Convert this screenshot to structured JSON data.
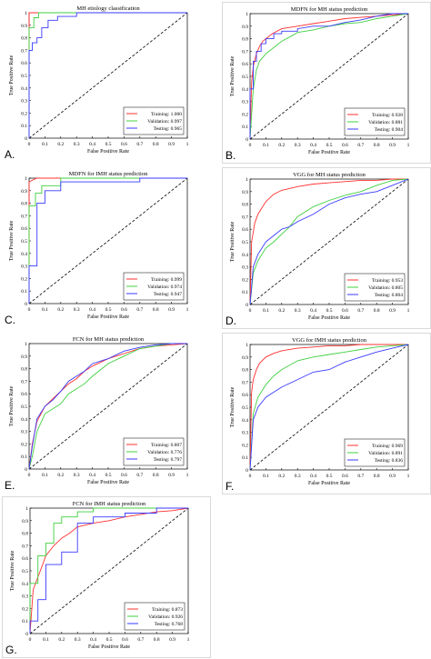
{
  "colors": {
    "training": "#ff3030",
    "validation": "#40d040",
    "testing": "#3a3aff",
    "chance": "#000000"
  },
  "chart_data": [
    {
      "type": "line",
      "panel_label": "A.",
      "title": "MH etiology classification",
      "xlabel": "False Positive Rate",
      "ylabel": "True Positive Rate",
      "xlim": [
        0,
        1
      ],
      "ylim": [
        0,
        1
      ],
      "xticks": [
        "0",
        "0.1",
        "0.2",
        "0.3",
        "0.4",
        "0.5",
        "0.6",
        "0.7",
        "0.8",
        "0.9",
        "1"
      ],
      "yticks": [
        "0",
        "0.1",
        "0.2",
        "0.3",
        "0.4",
        "0.5",
        "0.6",
        "0.7",
        "0.8",
        "0.9",
        "1"
      ],
      "legend": "bottom-right",
      "series": [
        {
          "name": "Training: 1.000",
          "color": "#ff3030",
          "x": [
            0,
            0,
            0.02,
            1
          ],
          "y": [
            0,
            1,
            1,
            1
          ]
        },
        {
          "name": "Validation: 0.997",
          "color": "#40d040",
          "x": [
            0,
            0,
            0.03,
            0.03,
            0.06,
            0.06,
            0.1,
            1
          ],
          "y": [
            0,
            0.88,
            0.88,
            0.96,
            0.96,
            1,
            1,
            1
          ]
        },
        {
          "name": "Testing: 0.965",
          "color": "#3a3aff",
          "x": [
            0,
            0,
            0.02,
            0.02,
            0.05,
            0.05,
            0.08,
            0.08,
            0.12,
            0.12,
            0.18,
            0.18,
            0.3,
            0.3,
            1
          ],
          "y": [
            0,
            0.7,
            0.7,
            0.76,
            0.76,
            0.8,
            0.8,
            0.88,
            0.88,
            0.94,
            0.94,
            0.97,
            0.97,
            1,
            1
          ]
        }
      ]
    },
    {
      "type": "line",
      "panel_label": "B.",
      "title": "MDFN for MH status prediction",
      "xlabel": "False Positive Rate",
      "ylabel": "True Positive Rate",
      "xlim": [
        0,
        1
      ],
      "ylim": [
        0,
        1
      ],
      "xticks": [
        "0",
        "0.1",
        "0.2",
        "0.3",
        "0.4",
        "0.5",
        "0.6",
        "0.7",
        "0.8",
        "0.9",
        "1"
      ],
      "yticks": [
        "0",
        "0.1",
        "0.2",
        "0.3",
        "0.4",
        "0.5",
        "0.6",
        "0.7",
        "0.8",
        "0.9",
        "1"
      ],
      "legend": "bottom-right",
      "series": [
        {
          "name": "Training: 0.928",
          "color": "#ff3030",
          "x": [
            0,
            0.01,
            0.02,
            0.04,
            0.06,
            0.08,
            0.1,
            0.14,
            0.2,
            0.3,
            0.4,
            0.5,
            0.6,
            0.7,
            0.8,
            0.9,
            1
          ],
          "y": [
            0,
            0.45,
            0.58,
            0.68,
            0.74,
            0.78,
            0.8,
            0.84,
            0.88,
            0.9,
            0.92,
            0.94,
            0.96,
            0.97,
            0.98,
            0.99,
            1
          ]
        },
        {
          "name": "Validation: 0.881",
          "color": "#40d040",
          "x": [
            0,
            0.02,
            0.04,
            0.06,
            0.1,
            0.14,
            0.2,
            0.26,
            0.3,
            0.4,
            0.5,
            0.6,
            0.7,
            0.8,
            0.9,
            1
          ],
          "y": [
            0,
            0.4,
            0.55,
            0.62,
            0.68,
            0.72,
            0.78,
            0.82,
            0.85,
            0.87,
            0.9,
            0.92,
            0.93,
            0.96,
            0.98,
            1
          ]
        },
        {
          "name": "Testing: 0.904",
          "color": "#3a3aff",
          "x": [
            0,
            0,
            0.02,
            0.02,
            0.04,
            0.04,
            0.07,
            0.07,
            0.1,
            0.1,
            0.15,
            0.15,
            0.2,
            0.2,
            0.3,
            0.3,
            0.4,
            0.5,
            0.6,
            0.7,
            0.8,
            0.9,
            1
          ],
          "y": [
            0,
            0.4,
            0.4,
            0.62,
            0.62,
            0.7,
            0.7,
            0.76,
            0.76,
            0.8,
            0.8,
            0.84,
            0.84,
            0.86,
            0.86,
            0.88,
            0.9,
            0.9,
            0.93,
            0.95,
            0.98,
            1,
            1
          ]
        }
      ]
    },
    {
      "type": "line",
      "panel_label": "C.",
      "title": "MDFN for IMH status prediction",
      "xlabel": "False Positive Rate",
      "ylabel": "True Positive Rate",
      "xlim": [
        0,
        1
      ],
      "ylim": [
        0,
        1
      ],
      "xticks": [
        "0",
        "0.1",
        "0.2",
        "0.3",
        "0.4",
        "0.5",
        "0.6",
        "0.7",
        "0.8",
        "0.9",
        "1"
      ],
      "yticks": [
        "0",
        "0.1",
        "0.2",
        "0.3",
        "0.4",
        "0.5",
        "0.6",
        "0.7",
        "0.8",
        "0.9",
        "1"
      ],
      "legend": "bottom-right",
      "series": [
        {
          "name": "Training: 0.999",
          "color": "#ff3030",
          "x": [
            0,
            0,
            0.03,
            0.05,
            1
          ],
          "y": [
            0,
            0.97,
            0.99,
            1,
            1
          ]
        },
        {
          "name": "Validation: 0.974",
          "color": "#40d040",
          "x": [
            0,
            0,
            0.04,
            0.04,
            0.08,
            0.08,
            0.2,
            0.2,
            1
          ],
          "y": [
            0,
            0.78,
            0.78,
            0.88,
            0.88,
            0.94,
            0.94,
            1,
            1
          ]
        },
        {
          "name": "Testing: 0.947",
          "color": "#3a3aff",
          "x": [
            0,
            0,
            0.05,
            0.05,
            0.1,
            0.1,
            0.2,
            0.2,
            0.7,
            0.7,
            1
          ],
          "y": [
            0,
            0.3,
            0.3,
            0.8,
            0.8,
            0.9,
            0.9,
            0.97,
            0.97,
            1,
            1
          ]
        }
      ]
    },
    {
      "type": "line",
      "panel_label": "D.",
      "title": "VGG for MH status prediction",
      "xlabel": "False Positive Rate",
      "ylabel": "True Positive Rate",
      "xlim": [
        0,
        1
      ],
      "ylim": [
        0,
        1
      ],
      "xticks": [
        "0",
        "0.1",
        "0.2",
        "0.3",
        "0.4",
        "0.5",
        "0.6",
        "0.7",
        "0.8",
        "0.9",
        "1"
      ],
      "yticks": [
        "0",
        "0.1",
        "0.2",
        "0.3",
        "0.4",
        "0.5",
        "0.6",
        "0.7",
        "0.8",
        "0.9",
        "1"
      ],
      "legend": "bottom-right",
      "series": [
        {
          "name": "Training: 0.953",
          "color": "#ff3030",
          "x": [
            0,
            0.01,
            0.03,
            0.05,
            0.08,
            0.1,
            0.15,
            0.2,
            0.3,
            0.4,
            0.5,
            0.6,
            0.7,
            0.8,
            0.9,
            1
          ],
          "y": [
            0,
            0.5,
            0.65,
            0.72,
            0.78,
            0.82,
            0.88,
            0.91,
            0.94,
            0.96,
            0.97,
            0.98,
            0.99,
            0.99,
            1,
            1
          ]
        },
        {
          "name": "Validation: 0.805",
          "color": "#40d040",
          "x": [
            0,
            0.02,
            0.05,
            0.1,
            0.15,
            0.2,
            0.25,
            0.3,
            0.4,
            0.5,
            0.6,
            0.7,
            0.8,
            0.9,
            1
          ],
          "y": [
            0,
            0.25,
            0.35,
            0.45,
            0.5,
            0.56,
            0.62,
            0.7,
            0.78,
            0.83,
            0.87,
            0.9,
            0.95,
            0.99,
            1
          ]
        },
        {
          "name": "Testing: 0.804",
          "color": "#3a3aff",
          "x": [
            0,
            0.02,
            0.05,
            0.1,
            0.15,
            0.2,
            0.25,
            0.3,
            0.4,
            0.5,
            0.6,
            0.7,
            0.8,
            0.9,
            1
          ],
          "y": [
            0,
            0.3,
            0.4,
            0.5,
            0.55,
            0.6,
            0.62,
            0.66,
            0.72,
            0.8,
            0.85,
            0.88,
            0.9,
            0.95,
            1
          ]
        }
      ]
    },
    {
      "type": "line",
      "panel_label": "E.",
      "title": "FCN for MH status prediction",
      "xlabel": "False Positive Rate",
      "ylabel": "True Positive Rate",
      "xlim": [
        0,
        1
      ],
      "ylim": [
        0,
        1
      ],
      "xticks": [
        "0",
        "0.1",
        "0.2",
        "0.3",
        "0.4",
        "0.5",
        "0.6",
        "0.7",
        "0.8",
        "0.9",
        "1"
      ],
      "yticks": [
        "0",
        "0.1",
        "0.2",
        "0.3",
        "0.4",
        "0.5",
        "0.6",
        "0.7",
        "0.8",
        "0.9",
        "1"
      ],
      "legend": "bottom-right",
      "series": [
        {
          "name": "Training: 0.807",
          "color": "#ff3030",
          "x": [
            0,
            0.02,
            0.05,
            0.1,
            0.15,
            0.2,
            0.25,
            0.3,
            0.35,
            0.4,
            0.5,
            0.6,
            0.7,
            0.8,
            0.9,
            1
          ],
          "y": [
            0,
            0.2,
            0.38,
            0.5,
            0.56,
            0.62,
            0.68,
            0.72,
            0.78,
            0.82,
            0.88,
            0.92,
            0.96,
            0.98,
            0.99,
            1
          ]
        },
        {
          "name": "Validation: 0.776",
          "color": "#40d040",
          "x": [
            0,
            0.02,
            0.05,
            0.1,
            0.15,
            0.2,
            0.25,
            0.3,
            0.35,
            0.4,
            0.5,
            0.6,
            0.7,
            0.8,
            0.9,
            1
          ],
          "y": [
            0,
            0.1,
            0.3,
            0.44,
            0.48,
            0.52,
            0.6,
            0.64,
            0.68,
            0.74,
            0.84,
            0.9,
            0.96,
            0.98,
            1,
            1
          ]
        },
        {
          "name": "Testing: 0.797",
          "color": "#3a3aff",
          "x": [
            0,
            0.02,
            0.05,
            0.1,
            0.15,
            0.2,
            0.25,
            0.3,
            0.35,
            0.4,
            0.5,
            0.6,
            0.7,
            0.8,
            0.9,
            1
          ],
          "y": [
            0,
            0.18,
            0.4,
            0.5,
            0.55,
            0.62,
            0.7,
            0.74,
            0.78,
            0.84,
            0.88,
            0.94,
            0.97,
            0.99,
            1,
            1
          ]
        }
      ]
    },
    {
      "type": "line",
      "panel_label": "F.",
      "title": "VGG for IMH status prediction",
      "xlabel": "False Positive Rate",
      "ylabel": "True Positive Rate",
      "xlim": [
        0,
        1
      ],
      "ylim": [
        0,
        1
      ],
      "xticks": [
        "0",
        "0.1",
        "0.2",
        "0.3",
        "0.4",
        "0.5",
        "0.6",
        "0.7",
        "0.8",
        "0.9",
        "1"
      ],
      "yticks": [
        "0",
        "0.1",
        "0.2",
        "0.3",
        "0.4",
        "0.5",
        "0.6",
        "0.7",
        "0.8",
        "0.9",
        "1"
      ],
      "legend": "bottom-right",
      "series": [
        {
          "name": "Training: 0.969",
          "color": "#ff3030",
          "x": [
            0,
            0.01,
            0.02,
            0.04,
            0.06,
            0.1,
            0.15,
            0.2,
            0.3,
            0.4,
            0.5,
            0.6,
            0.7,
            0.8,
            0.9,
            1
          ],
          "y": [
            0,
            0.62,
            0.72,
            0.8,
            0.85,
            0.9,
            0.93,
            0.95,
            0.97,
            0.98,
            0.99,
            0.99,
            1,
            1,
            1,
            1
          ]
        },
        {
          "name": "Validation: 0.891",
          "color": "#40d040",
          "x": [
            0,
            0.02,
            0.05,
            0.1,
            0.15,
            0.2,
            0.3,
            0.4,
            0.5,
            0.6,
            0.7,
            0.8,
            0.9,
            1
          ],
          "y": [
            0,
            0.45,
            0.58,
            0.68,
            0.75,
            0.8,
            0.87,
            0.9,
            0.92,
            0.94,
            0.96,
            0.98,
            0.99,
            1
          ]
        },
        {
          "name": "Testing: 0.836",
          "color": "#3a3aff",
          "x": [
            0,
            0.02,
            0.05,
            0.1,
            0.15,
            0.2,
            0.3,
            0.4,
            0.5,
            0.6,
            0.7,
            0.8,
            0.9,
            1
          ],
          "y": [
            0,
            0.4,
            0.5,
            0.58,
            0.62,
            0.66,
            0.72,
            0.78,
            0.8,
            0.86,
            0.9,
            0.94,
            0.97,
            1
          ]
        }
      ]
    },
    {
      "type": "line",
      "panel_label": "G.",
      "title": "FCN for IMH status prediction",
      "xlabel": "False Positive Rate",
      "ylabel": "True Positive Rate",
      "xlim": [
        0,
        1
      ],
      "ylim": [
        0,
        1
      ],
      "xticks": [
        "0",
        "0.1",
        "0.2",
        "0.3",
        "0.4",
        "0.5",
        "0.6",
        "0.7",
        "0.8",
        "0.9",
        "1"
      ],
      "yticks": [
        "0",
        "0.1",
        "0.2",
        "0.3",
        "0.4",
        "0.5",
        "0.6",
        "0.7",
        "0.8",
        "0.9",
        "1"
      ],
      "legend": "bottom-right",
      "series": [
        {
          "name": "Training: 0.873",
          "color": "#ff3030",
          "x": [
            0,
            0.02,
            0.05,
            0.08,
            0.1,
            0.15,
            0.2,
            0.25,
            0.3,
            0.4,
            0.5,
            0.6,
            0.7,
            0.8,
            0.9,
            1
          ],
          "y": [
            0,
            0.35,
            0.45,
            0.55,
            0.62,
            0.7,
            0.76,
            0.8,
            0.85,
            0.88,
            0.9,
            0.93,
            0.95,
            0.97,
            0.98,
            1
          ]
        },
        {
          "name": "Validation: 0.926",
          "color": "#40d040",
          "x": [
            0,
            0,
            0.05,
            0.05,
            0.1,
            0.1,
            0.15,
            0.15,
            0.2,
            0.2,
            0.3,
            0.3,
            0.4,
            0.4,
            1
          ],
          "y": [
            0,
            0.4,
            0.4,
            0.62,
            0.62,
            0.72,
            0.72,
            0.88,
            0.88,
            0.93,
            0.93,
            0.97,
            0.97,
            1,
            1
          ]
        },
        {
          "name": "Testing: 0.768",
          "color": "#3a3aff",
          "x": [
            0,
            0,
            0.05,
            0.05,
            0.1,
            0.1,
            0.2,
            0.2,
            0.3,
            0.3,
            0.4,
            0.4,
            0.6,
            0.6,
            0.8,
            0.8,
            1
          ],
          "y": [
            0,
            0.1,
            0.1,
            0.27,
            0.27,
            0.55,
            0.55,
            0.65,
            0.65,
            0.88,
            0.88,
            0.93,
            0.93,
            0.96,
            0.96,
            1,
            1
          ]
        }
      ]
    }
  ]
}
